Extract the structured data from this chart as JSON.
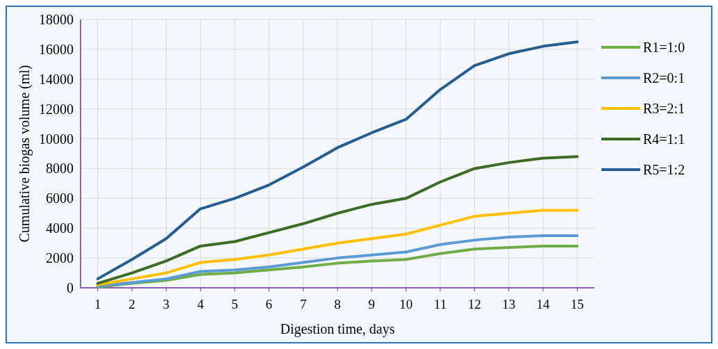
{
  "chart_data": {
    "type": "line",
    "xlabel": "Digestion time, days",
    "ylabel": "Cumulative biogas volume (ml)",
    "x": [
      1,
      2,
      3,
      4,
      5,
      6,
      7,
      8,
      9,
      10,
      11,
      12,
      13,
      14,
      15
    ],
    "xlim": [
      0.5,
      15.5
    ],
    "xticks": [
      1,
      2,
      3,
      4,
      5,
      6,
      7,
      8,
      9,
      10,
      11,
      12,
      13,
      14,
      15
    ],
    "ylim": [
      0,
      18000
    ],
    "yticks": [
      0,
      2000,
      4000,
      6000,
      8000,
      10000,
      12000,
      14000,
      16000,
      18000
    ],
    "grid": true,
    "legend": "right",
    "marker": "none",
    "line_style": "solid",
    "series": [
      {
        "name": "R1=1:0",
        "color": "#70ad47",
        "values": [
          50,
          300,
          500,
          900,
          1000,
          1200,
          1400,
          1650,
          1800,
          1900,
          2300,
          2600,
          2700,
          2800,
          2800
        ]
      },
      {
        "name": "R2=0:1",
        "color": "#5b9bd5",
        "values": [
          100,
          350,
          600,
          1100,
          1200,
          1400,
          1700,
          2000,
          2200,
          2400,
          2900,
          3200,
          3400,
          3500,
          3500
        ]
      },
      {
        "name": "R3=2:1",
        "color": "#ffc000",
        "values": [
          200,
          600,
          1000,
          1700,
          1900,
          2200,
          2600,
          3000,
          3300,
          3600,
          4200,
          4800,
          5000,
          5200,
          5200
        ]
      },
      {
        "name": "R4=1:1",
        "color": "#3b6b24",
        "values": [
          300,
          1000,
          1800,
          2800,
          3100,
          3700,
          4300,
          5000,
          5600,
          6000,
          7100,
          8000,
          8400,
          8700,
          8800
        ]
      },
      {
        "name": "R5=1:2",
        "color": "#255e91",
        "values": [
          600,
          1900,
          3300,
          5300,
          6000,
          6900,
          8100,
          9400,
          10400,
          11300,
          13300,
          14900,
          15700,
          16200,
          16500
        ]
      }
    ]
  }
}
